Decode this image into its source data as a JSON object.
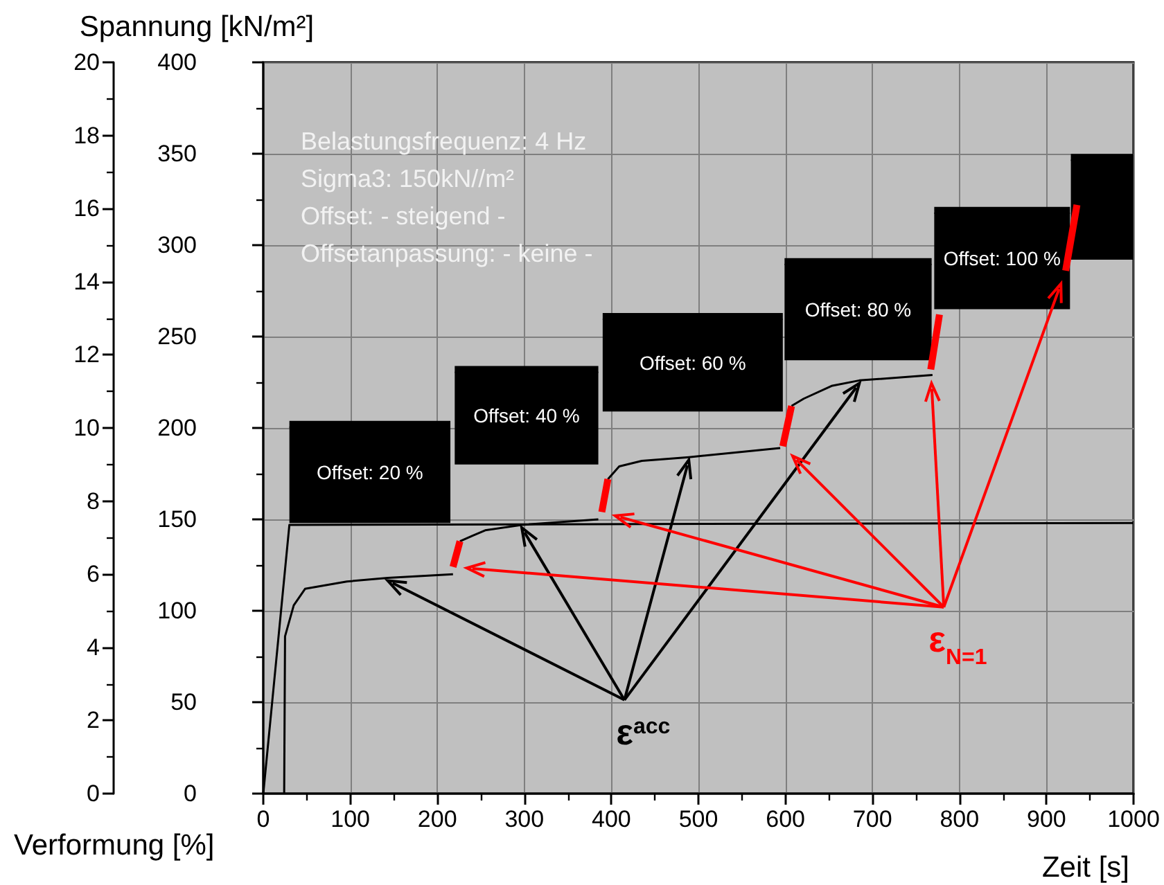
{
  "chart_data": {
    "type": "line",
    "ylabel": "Spannung [kN/m²]",
    "y2label": "Verformung [%]",
    "xlabel": "Zeit [s]",
    "xlim": [
      0,
      1000
    ],
    "xticks": [
      0,
      100,
      200,
      300,
      400,
      500,
      600,
      700,
      800,
      900,
      1000
    ],
    "ylim": [
      0,
      400
    ],
    "yticks": [
      0,
      50,
      100,
      150,
      200,
      250,
      300,
      350,
      400
    ],
    "y2lim": [
      0,
      20
    ],
    "y2ticks": [
      0,
      2,
      4,
      6,
      8,
      10,
      12,
      14,
      16,
      18,
      20
    ],
    "grid": true,
    "marker": "none",
    "series": [
      {
        "color": "#000000",
        "x": [
          0,
          30,
          1000
        ],
        "values": [
          0,
          147,
          148
        ]
      },
      {
        "color": "#000000",
        "x": [
          30,
          215,
          217,
          220,
          385,
          387,
          390,
          597,
          598,
          599,
          768,
          769,
          771,
          927,
          927.5,
          928,
          1000
        ],
        "values": [
          202,
          202,
          null,
          232,
          232,
          null,
          261,
          261,
          null,
          291,
          291,
          null,
          319,
          319,
          null,
          348,
          348
        ],
        "lower": [
          148,
          148,
          null,
          180,
          180,
          null,
          209,
          209,
          null,
          237,
          237,
          null,
          265,
          265,
          null,
          292,
          292
        ],
        "upper": [
          202,
          202,
          null,
          232,
          232,
          null,
          261,
          261,
          null,
          291,
          291,
          null,
          319,
          319,
          null,
          348,
          348
        ]
      },
      {
        "color": "#000000",
        "axis": "y2",
        "x": [
          24,
          25,
          35,
          48,
          96,
          143,
          218,
          222,
          226,
          240,
          255,
          297,
          385,
          388,
          396,
          409,
          435,
          489,
          594,
          600,
          607,
          621,
          653,
          685,
          769
        ],
        "values": [
          0,
          4.3,
          5.15,
          5.6,
          5.8,
          5.9,
          6.0,
          null,
          6.9,
          7.05,
          7.2,
          7.35,
          7.5,
          null,
          8.6,
          8.95,
          9.1,
          9.2,
          9.45,
          null,
          10.6,
          10.8,
          11.15,
          11.3,
          11.45
        ]
      },
      {
        "color": "#ff0000",
        "axis": "y2",
        "x": [
          218,
          226,
          300,
          389,
          396,
          500,
          597,
          607,
          700,
          767,
          777,
          850,
          922,
          935
        ],
        "values": [
          6.2,
          6.9,
          null,
          7.7,
          8.6,
          null,
          9.5,
          10.6,
          null,
          11.6,
          13.1,
          null,
          14.3,
          16.1
        ]
      }
    ],
    "annotations": [
      "Belastungsfrequenz: 4 Hz",
      "Sigma3: 150kN//m²",
      "Offset: - steigend -",
      "Offsetanpassung: - keine -",
      "Offset: 20 %",
      "Offset: 40 %",
      "Offset: 60 %",
      "Offset: 80 %",
      "Offset: 100 %",
      {
        "text": "ε$^{acc}$",
        "x": 143,
        "y": 118
      },
      "ε$_{N=1}$"
    ]
  }
}
